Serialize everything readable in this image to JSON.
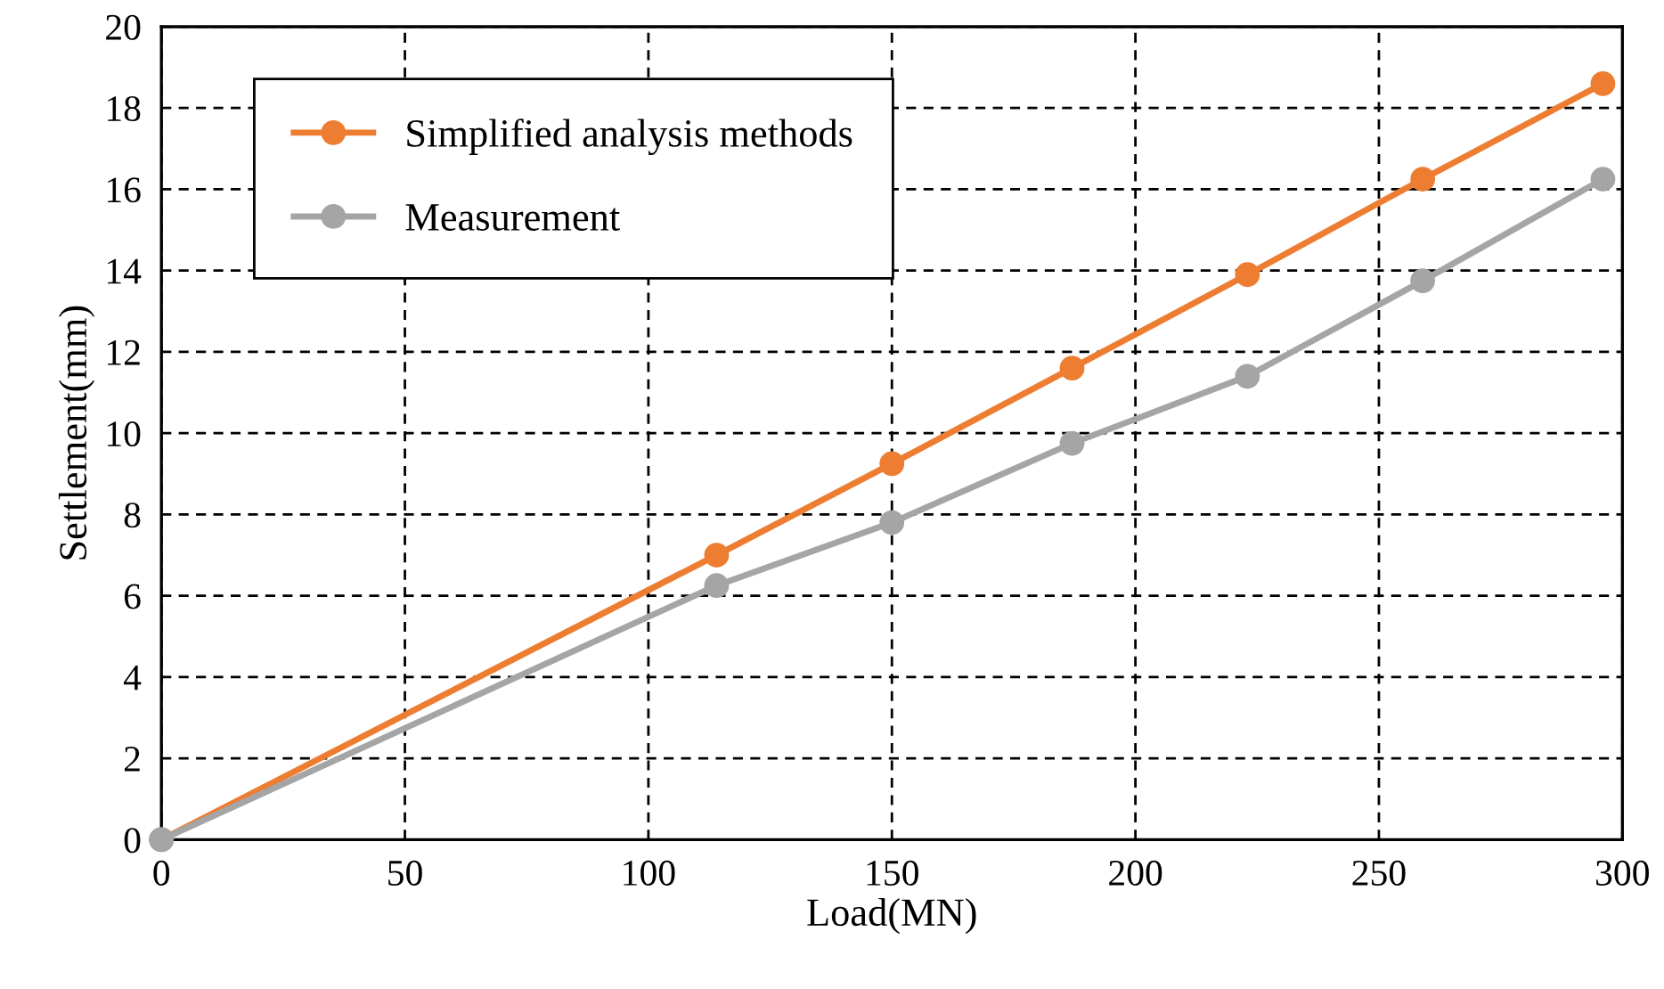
{
  "chart_data": {
    "type": "line",
    "xlabel": "Load(MN)",
    "ylabel": "Settlement(mm)",
    "xlim": [
      0,
      300
    ],
    "xticks": [
      0,
      50,
      100,
      150,
      200,
      250,
      300
    ],
    "ylim": [
      0,
      20
    ],
    "yticks": [
      0,
      2,
      4,
      6,
      8,
      10,
      12,
      14,
      16,
      18,
      20
    ],
    "grid": true,
    "legend": "top left",
    "marker": "circle",
    "line_style": "solid",
    "series": [
      {
        "name": "Simplified analysis methods",
        "color": "#ed7d31",
        "x": [
          0,
          114,
          150,
          187,
          223,
          259,
          296
        ],
        "values": [
          0,
          7.0,
          9.25,
          11.6,
          13.9,
          16.25,
          18.6
        ]
      },
      {
        "name": "Measurement",
        "color": "#a5a5a5",
        "x": [
          0,
          114,
          150,
          187,
          223,
          259,
          296
        ],
        "values": [
          0,
          6.25,
          7.8,
          9.75,
          11.4,
          13.75,
          16.25
        ]
      }
    ]
  }
}
